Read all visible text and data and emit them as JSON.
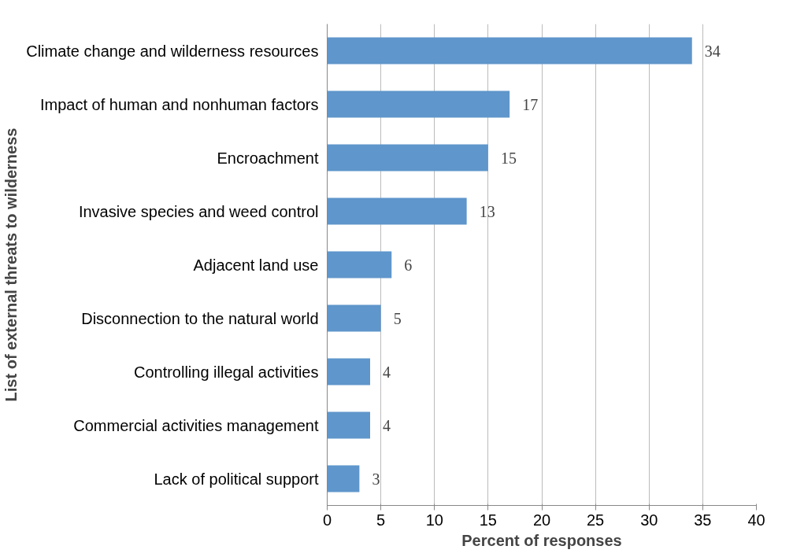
{
  "chart_data": {
    "type": "bar",
    "orientation": "horizontal",
    "categories": [
      "Climate change and wilderness resources",
      "Impact of human and nonhuman factors",
      "Encroachment",
      "Invasive species and weed control",
      "Adjacent land use",
      "Disconnection to the natural world",
      "Controlling illegal activities",
      "Commercial activities management",
      "Lack of political support"
    ],
    "values": [
      34,
      17,
      15,
      13,
      6,
      5,
      4,
      4,
      3
    ],
    "color": "#5f96cb",
    "xlim": [
      0,
      40
    ],
    "xticks": [
      0,
      5,
      10,
      15,
      20,
      25,
      30,
      35,
      40
    ],
    "xlabel": "Percent of responses",
    "ylabel": "List of external threats to wilderness",
    "grid": "x",
    "data_labels": true
  }
}
